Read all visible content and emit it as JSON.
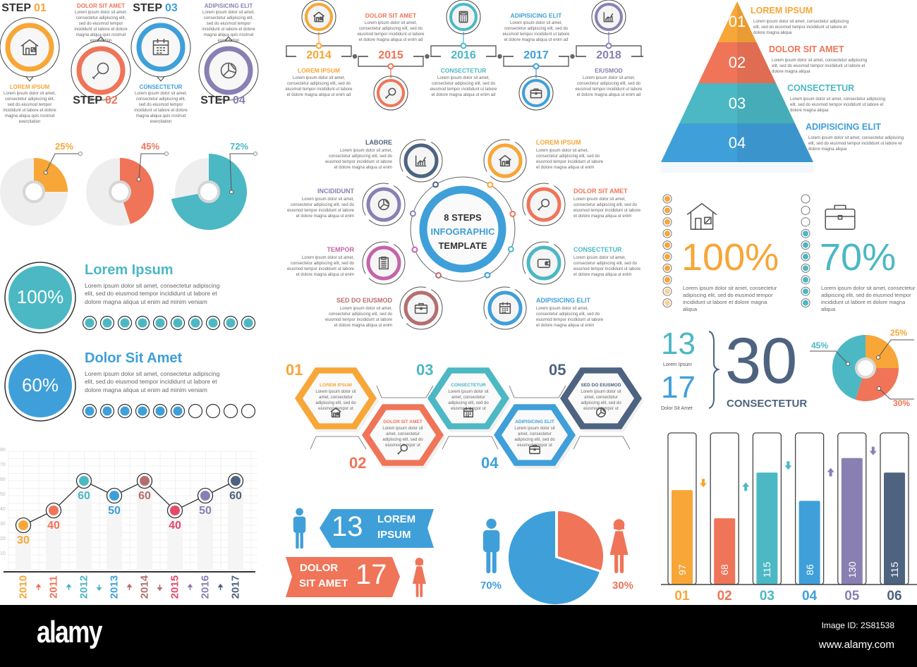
{
  "colors": {
    "orange": "#f7a637",
    "coral": "#ef7458",
    "teal": "#4bb8c4",
    "blue": "#3f9fd9",
    "purple": "#8a7fb3",
    "navy": "#4d6380",
    "rose": "#b56e6e",
    "pink": "#e5486a",
    "magenta": "#c464a8",
    "text": "#333333"
  },
  "steps": {
    "label": "STEP",
    "body": "Lorem ipsum dolor sit amet, consectetur adipiscing elit, sed do eiusmod tempor incididunt ut labore et dolore magna aliqua quis nostrud exercitation",
    "items": [
      {
        "num": "01",
        "title": "LOREM IPSUM",
        "icon": "house",
        "color": "#f7a637"
      },
      {
        "num": "02",
        "title": "DOLOR SIT AMET",
        "icon": "magnifier",
        "color": "#ef7458"
      },
      {
        "num": "03",
        "title": "CONSECTETUR",
        "icon": "calendar",
        "color": "#3f9fd9"
      },
      {
        "num": "04",
        "title": "ADIPISICING ELIT",
        "icon": "pie",
        "color": "#8a7fb3"
      }
    ]
  },
  "timeline": {
    "body": "Lorem ipsum dolor sit amet, consectetur adipiscing elit, sed do eiusmod tempor incididunt ut labore et dolore magna aliqua ut enim ad",
    "items": [
      {
        "year": "2014",
        "title": "LOREM IPSUM",
        "icon": "house",
        "color": "#f7a637"
      },
      {
        "year": "2015",
        "title": "DOLOR SIT AMET",
        "icon": "magnifier",
        "color": "#ef7458"
      },
      {
        "year": "2016",
        "title": "CONSECTETUR",
        "icon": "calculator",
        "color": "#4bb8c4"
      },
      {
        "year": "2017",
        "title": "ADIPISICING ELIT",
        "icon": "briefcase",
        "color": "#3f9fd9"
      },
      {
        "year": "2018",
        "title": "EIUSMOD",
        "icon": "chart",
        "color": "#8a7fb3"
      }
    ]
  },
  "pyramid": {
    "body": "Lorem ipsum dolor sit amet, consectetur adipiscing elit, sed do eiusmod tempor incididunt ut labore et dolore magna aliqua",
    "items": [
      {
        "num": "01",
        "title": "LOREM IPSUM",
        "color": "#f7a637"
      },
      {
        "num": "02",
        "title": "DOLOR SIT AMET",
        "color": "#ef7458"
      },
      {
        "num": "03",
        "title": "CONSECTETUR",
        "color": "#4bb8c4"
      },
      {
        "num": "04",
        "title": "ADIPISICING ELIT",
        "color": "#3f9fd9"
      }
    ]
  },
  "donuts": [
    {
      "label": "25%",
      "value": 25,
      "color": "#f7a637"
    },
    {
      "label": "45%",
      "value": 45,
      "color": "#ef7458"
    },
    {
      "label": "72%",
      "value": 72,
      "color": "#4bb8c4"
    }
  ],
  "eight_steps": {
    "center": [
      "8 STEPS",
      "INFOGRAPHIC",
      "TEMPLATE"
    ],
    "body": "Lorem ipsum dolor sit amet, consectetur adipiscing elit, sed do eiusmod tempor incididunt ut labore et dolore magna aliqua ut enim",
    "items": [
      {
        "title": "LABORE",
        "icon": "chart",
        "color": "#4d6380"
      },
      {
        "title": "LOREM IPSUM",
        "icon": "house",
        "color": "#f7a637"
      },
      {
        "title": "INCIDIDUNT",
        "icon": "pie",
        "color": "#8a7fb3"
      },
      {
        "title": "DOLOR SIT AMET",
        "icon": "magnifier",
        "color": "#ef7458"
      },
      {
        "title": "TEMPOR",
        "icon": "clipboard",
        "color": "#c464a8"
      },
      {
        "title": "CONSECTETUR",
        "icon": "wallet",
        "color": "#4bb8c4"
      },
      {
        "title": "SED DO EIUSMOD",
        "icon": "briefcase",
        "color": "#b56e6e"
      },
      {
        "title": "ADIPISICING ELIT",
        "icon": "calendar",
        "color": "#3f9fd9"
      }
    ]
  },
  "progress": {
    "body": "Lorem ipsum dolor sit amet, consectetur adipiscing elit, sed do eiusmod tempor incididunt ut labore et dolore magna aliqua ut enim ad minim veniam",
    "items": [
      {
        "value_label": "100%",
        "title": "Lorem Ipsum",
        "filled": 10,
        "total": 10,
        "color": "#4bb8c4"
      },
      {
        "value_label": "60%",
        "title": "Dolor Sit Amet",
        "filled": 6,
        "total": 10,
        "color": "#3f9fd9"
      }
    ]
  },
  "stats": {
    "body": "Lorem ipsum dolor sit amet, consectetur adipiscing elit, sed do eiusmod tempor incididunt ut labore et dolore magna aliqua",
    "items": [
      {
        "value_label": "100%",
        "icon": "house",
        "filled": 10,
        "total": 10,
        "color": "#f7a637"
      },
      {
        "value_label": "70%",
        "icon": "briefcase",
        "filled": 7,
        "total": 10,
        "color": "#4bb8c4"
      }
    ]
  },
  "sum": {
    "a": "13",
    "a_label": "Lorem Ipsum",
    "b": "17",
    "b_label": "Dolor Sit Amet",
    "total": "30",
    "total_label": "CONSECTETUR"
  },
  "hexagons": {
    "body": "Lorem ipsum dolor sit amet, consectetur adipiscing elit, sed do eiusmod tempor ut",
    "items": [
      {
        "num": "01",
        "title": "LOREM IPSUM",
        "icon": "house",
        "color": "#f7a637"
      },
      {
        "num": "02",
        "title": "DOLOR SIT AMET",
        "icon": "magnifier",
        "color": "#ef7458"
      },
      {
        "num": "03",
        "title": "CONSECTETUR",
        "icon": "calendar",
        "color": "#4bb8c4"
      },
      {
        "num": "04",
        "title": "ADIPISICING ELIT",
        "icon": "briefcase",
        "color": "#3f9fd9"
      },
      {
        "num": "05",
        "title": "SED DO EIUSMOD",
        "icon": "pie",
        "color": "#4d6380"
      }
    ]
  },
  "ribbons": {
    "top_number": "13",
    "top_text_1": "LOREM",
    "top_text_2": "IPSUM",
    "bottom_number": "17",
    "bottom_text_1": "DOLOR",
    "bottom_text_2": "SIT AMET"
  },
  "chart_data": [
    {
      "type": "line",
      "x": [
        "2010",
        "2011",
        "2012",
        "2013",
        "2014",
        "2015",
        "2016",
        "2017"
      ],
      "values": [
        30,
        40,
        60,
        50,
        60,
        40,
        50,
        60
      ],
      "value_labels": [
        "30",
        "40",
        "60",
        "50",
        "60",
        "40",
        "50",
        "60"
      ],
      "trend": [
        "up",
        "up",
        "down",
        "up",
        "down",
        "up",
        "up"
      ],
      "point_colors": [
        "#f7a637",
        "#ef7458",
        "#4bb8c4",
        "#3f9fd9",
        "#b56e6e",
        "#e5486a",
        "#8a7fb3",
        "#4d6380"
      ],
      "yticks": [
        "10",
        "20",
        "30",
        "40",
        "50",
        "60",
        "70",
        "80"
      ],
      "ylim": [
        0,
        80
      ],
      "grid": true
    },
    {
      "type": "bar",
      "categories": [
        "01",
        "02",
        "03",
        "04",
        "05",
        "06"
      ],
      "values": [
        97,
        68,
        115,
        86,
        130,
        115
      ],
      "value_labels": [
        "97",
        "68",
        "115",
        "86",
        "130",
        "115"
      ],
      "trend": [
        "down",
        "up",
        "down",
        "up",
        "down"
      ],
      "colors": [
        "#f7a637",
        "#ef7458",
        "#4bb8c4",
        "#3f9fd9",
        "#8a7fb3",
        "#4d6380"
      ],
      "ylim": [
        0,
        150
      ]
    },
    {
      "type": "pie",
      "labels": [
        "25%",
        "30%",
        "45%"
      ],
      "values": [
        25,
        30,
        45
      ],
      "colors": [
        "#f7a637",
        "#ef7458",
        "#4bb8c4"
      ]
    },
    {
      "type": "pie",
      "labels": [
        "70%",
        "30%"
      ],
      "values": [
        70,
        30
      ],
      "colors": [
        "#3f9fd9",
        "#ef7458"
      ],
      "series_icons": [
        "male-icon",
        "female-icon"
      ]
    }
  ],
  "footer": {
    "logo": "alamy",
    "image_id": "Image ID: 2S81538",
    "url": "www.alamy.com"
  }
}
